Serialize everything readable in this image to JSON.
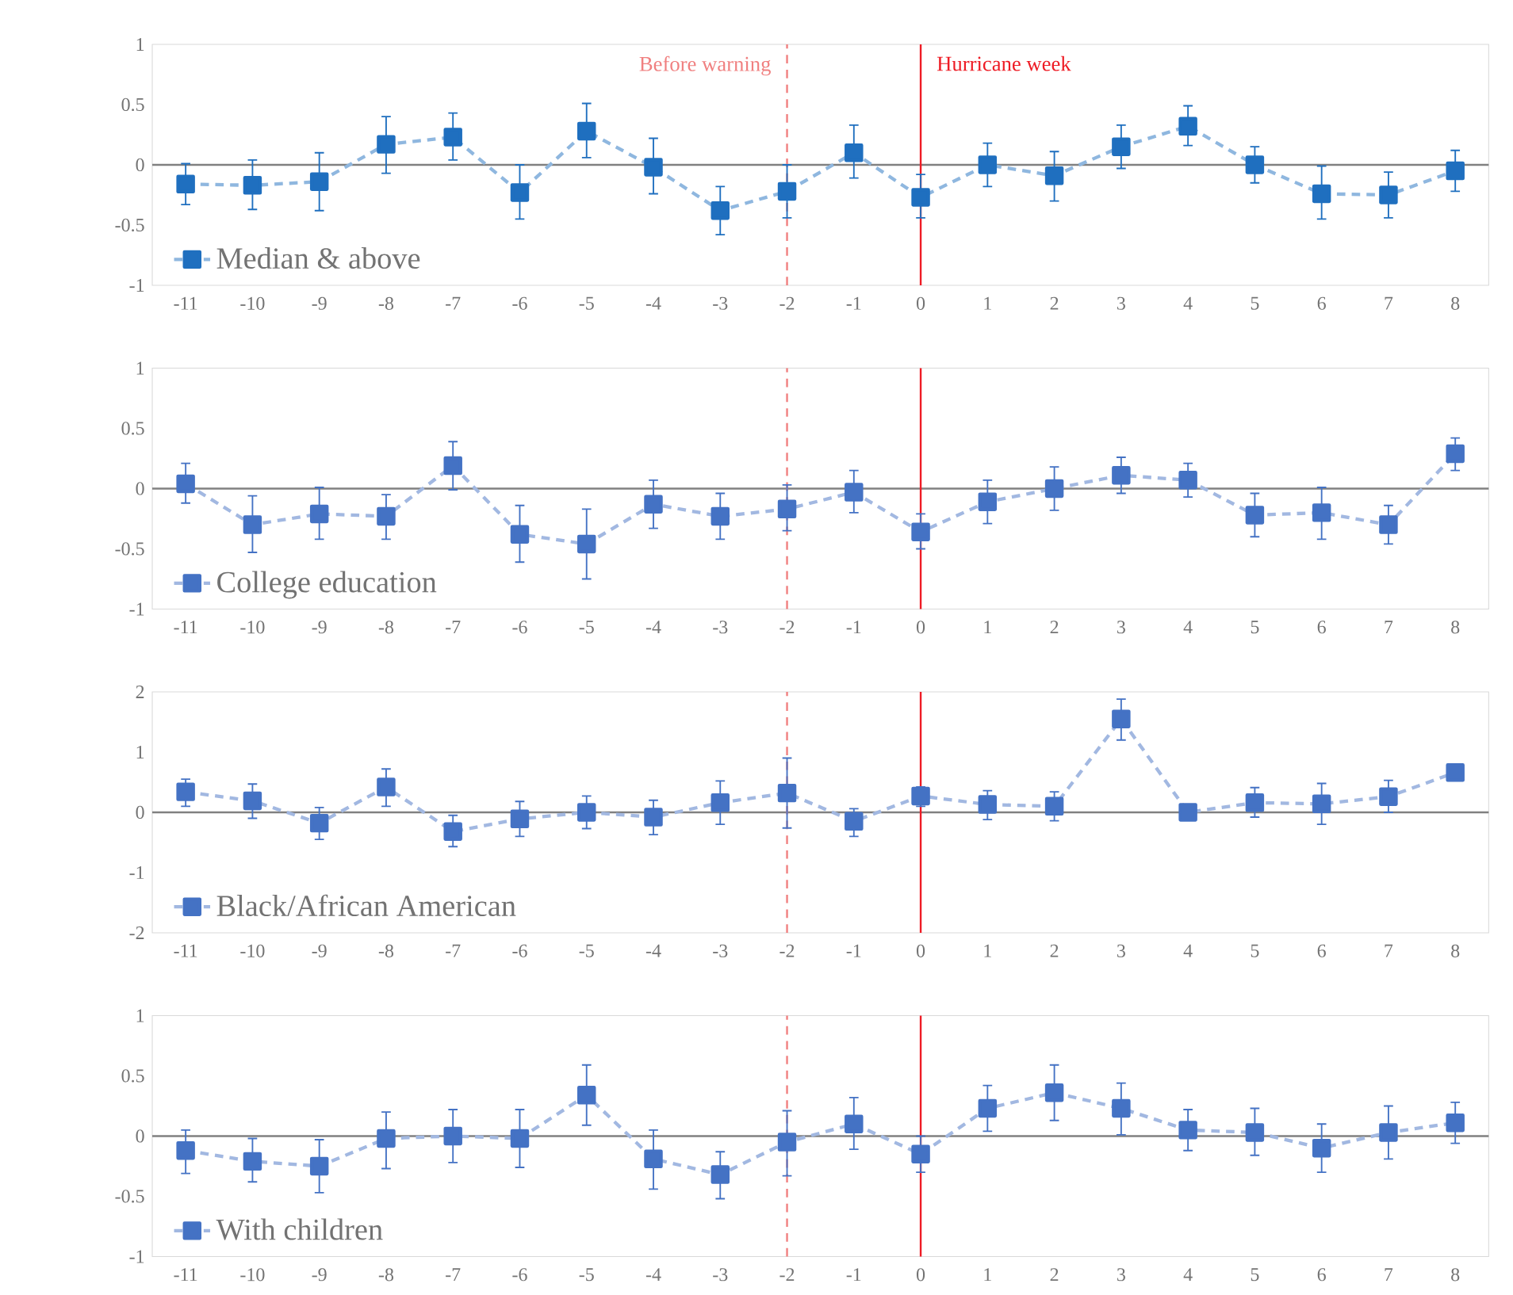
{
  "chart_data": [
    {
      "type": "line",
      "x": [
        -11,
        -10,
        -9,
        -8,
        -7,
        -6,
        -5,
        -4,
        -3,
        -2,
        -1,
        0,
        1,
        2,
        3,
        4,
        5,
        6,
        7,
        8
      ],
      "xlim": [
        -11.5,
        8.5
      ],
      "xticks": [
        -11,
        -10,
        -9,
        -8,
        -7,
        -6,
        -5,
        -4,
        -3,
        -2,
        -1,
        0,
        1,
        2,
        3,
        4,
        5,
        6,
        7,
        8
      ],
      "ylim": [
        -1,
        1
      ],
      "yticks": [
        -1,
        -0.5,
        0,
        0.5,
        1
      ],
      "marker": "square",
      "line_style": "dashed",
      "legend": "bottom left",
      "series": [
        {
          "name": "Median & above",
          "color": "#1f6fbf",
          "values": [
            -0.16,
            -0.17,
            -0.14,
            0.17,
            0.23,
            -0.23,
            0.28,
            -0.02,
            -0.38,
            -0.22,
            0.1,
            -0.27,
            0.0,
            -0.09,
            0.15,
            0.32,
            0.0,
            -0.24,
            -0.25,
            -0.05
          ],
          "errors": [
            [
              -0.33,
              0.01
            ],
            [
              -0.37,
              0.04
            ],
            [
              -0.38,
              0.1
            ],
            [
              -0.07,
              0.4
            ],
            [
              0.04,
              0.43
            ],
            [
              -0.45,
              0.0
            ],
            [
              0.06,
              0.51
            ],
            [
              -0.24,
              0.22
            ],
            [
              -0.58,
              -0.18
            ],
            [
              -0.44,
              0.0
            ],
            [
              -0.11,
              0.33
            ],
            [
              -0.44,
              -0.08
            ],
            [
              -0.18,
              0.18
            ],
            [
              -0.3,
              0.11
            ],
            [
              -0.03,
              0.33
            ],
            [
              0.16,
              0.49
            ],
            [
              -0.15,
              0.15
            ],
            [
              -0.45,
              -0.01
            ],
            [
              -0.44,
              -0.06
            ],
            [
              -0.22,
              0.12
            ]
          ]
        }
      ],
      "ref_lines": [
        {
          "axis": "y",
          "value": 0,
          "color": "#808080",
          "line_style": "solid"
        },
        {
          "axis": "x",
          "value": -2,
          "label": "Before warning",
          "color": "#f08080",
          "line_style": "dashed"
        },
        {
          "axis": "x",
          "value": 0,
          "label": "Hurricane week",
          "color": "#ee1c25",
          "line_style": "solid"
        }
      ]
    },
    {
      "type": "line",
      "x": [
        -11,
        -10,
        -9,
        -8,
        -7,
        -6,
        -5,
        -4,
        -3,
        -2,
        -1,
        0,
        1,
        2,
        3,
        4,
        5,
        6,
        7,
        8
      ],
      "xlim": [
        -11.5,
        8.5
      ],
      "xticks": [
        -11,
        -10,
        -9,
        -8,
        -7,
        -6,
        -5,
        -4,
        -3,
        -2,
        -1,
        0,
        1,
        2,
        3,
        4,
        5,
        6,
        7,
        8
      ],
      "ylim": [
        -1,
        1
      ],
      "yticks": [
        -1,
        -0.5,
        0,
        0.5,
        1
      ],
      "marker": "square",
      "line_style": "dashed",
      "legend": "bottom left",
      "series": [
        {
          "name": "College education",
          "color": "#4472c4",
          "values": [
            0.04,
            -0.3,
            -0.21,
            -0.23,
            0.19,
            -0.38,
            -0.46,
            -0.13,
            -0.23,
            -0.17,
            -0.03,
            -0.36,
            -0.11,
            0.0,
            0.11,
            0.07,
            -0.22,
            -0.2,
            -0.3,
            0.29
          ],
          "errors": [
            [
              -0.12,
              0.21
            ],
            [
              -0.53,
              -0.06
            ],
            [
              -0.42,
              0.01
            ],
            [
              -0.42,
              -0.05
            ],
            [
              -0.01,
              0.39
            ],
            [
              -0.61,
              -0.14
            ],
            [
              -0.75,
              -0.17
            ],
            [
              -0.33,
              0.07
            ],
            [
              -0.42,
              -0.04
            ],
            [
              -0.35,
              0.03
            ],
            [
              -0.2,
              0.15
            ],
            [
              -0.5,
              -0.21
            ],
            [
              -0.29,
              0.07
            ],
            [
              -0.18,
              0.18
            ],
            [
              -0.04,
              0.26
            ],
            [
              -0.07,
              0.21
            ],
            [
              -0.4,
              -0.04
            ],
            [
              -0.42,
              0.01
            ],
            [
              -0.46,
              -0.14
            ],
            [
              0.15,
              0.42
            ]
          ]
        }
      ],
      "ref_lines": [
        {
          "axis": "y",
          "value": 0,
          "color": "#808080",
          "line_style": "solid"
        },
        {
          "axis": "x",
          "value": -2,
          "color": "#f08080",
          "line_style": "dashed"
        },
        {
          "axis": "x",
          "value": 0,
          "color": "#ee1c25",
          "line_style": "solid"
        }
      ]
    },
    {
      "type": "line",
      "x": [
        -11,
        -10,
        -9,
        -8,
        -7,
        -6,
        -5,
        -4,
        -3,
        -2,
        -1,
        0,
        1,
        2,
        3,
        4,
        5,
        6,
        7,
        8
      ],
      "xlim": [
        -11.5,
        8.5
      ],
      "xticks": [
        -11,
        -10,
        -9,
        -8,
        -7,
        -6,
        -5,
        -4,
        -3,
        -2,
        -1,
        0,
        1,
        2,
        3,
        4,
        5,
        6,
        7,
        8
      ],
      "ylim": [
        -2,
        2
      ],
      "yticks": [
        -2,
        -1,
        0,
        1,
        2
      ],
      "marker": "square",
      "line_style": "dashed",
      "legend": "bottom left",
      "series": [
        {
          "name": "Black/African American",
          "color": "#4472c4",
          "values": [
            0.34,
            0.19,
            -0.18,
            0.42,
            -0.32,
            -0.11,
            0.0,
            -0.08,
            0.16,
            0.32,
            -0.15,
            0.27,
            0.13,
            0.1,
            1.55,
            0.0,
            0.16,
            0.14,
            0.26,
            0.66
          ],
          "errors": [
            [
              0.1,
              0.55
            ],
            [
              -0.1,
              0.47
            ],
            [
              -0.45,
              0.08
            ],
            [
              0.1,
              0.72
            ],
            [
              -0.57,
              -0.05
            ],
            [
              -0.4,
              0.18
            ],
            [
              -0.27,
              0.27
            ],
            [
              -0.37,
              0.2
            ],
            [
              -0.2,
              0.52
            ],
            [
              -0.26,
              0.9
            ],
            [
              -0.4,
              0.06
            ],
            [
              0.1,
              0.42
            ],
            [
              -0.12,
              0.36
            ],
            [
              -0.14,
              0.34
            ],
            [
              1.2,
              1.88
            ],
            null,
            [
              -0.08,
              0.41
            ],
            [
              -0.2,
              0.48
            ],
            [
              0.0,
              0.53
            ],
            null
          ]
        }
      ],
      "ref_lines": [
        {
          "axis": "y",
          "value": 0,
          "color": "#808080",
          "line_style": "solid"
        },
        {
          "axis": "x",
          "value": -2,
          "color": "#f08080",
          "line_style": "dashed"
        },
        {
          "axis": "x",
          "value": 0,
          "color": "#ee1c25",
          "line_style": "solid"
        }
      ]
    },
    {
      "type": "line",
      "x": [
        -11,
        -10,
        -9,
        -8,
        -7,
        -6,
        -5,
        -4,
        -3,
        -2,
        -1,
        0,
        1,
        2,
        3,
        4,
        5,
        6,
        7,
        8
      ],
      "xlim": [
        -11.5,
        8.5
      ],
      "xticks": [
        -11,
        -10,
        -9,
        -8,
        -7,
        -6,
        -5,
        -4,
        -3,
        -2,
        -1,
        0,
        1,
        2,
        3,
        4,
        5,
        6,
        7,
        8
      ],
      "ylim": [
        -1,
        1
      ],
      "yticks": [
        -1,
        -0.5,
        0,
        0.5,
        1
      ],
      "marker": "square",
      "line_style": "dashed",
      "legend": "bottom left",
      "series": [
        {
          "name": "With children",
          "color": "#4472c4",
          "values": [
            -0.12,
            -0.21,
            -0.25,
            -0.02,
            0.0,
            -0.02,
            0.34,
            -0.19,
            -0.32,
            -0.05,
            0.1,
            -0.15,
            0.23,
            0.36,
            0.23,
            0.05,
            0.03,
            -0.1,
            0.03,
            0.11
          ],
          "errors": [
            [
              -0.31,
              0.05
            ],
            [
              -0.38,
              -0.02
            ],
            [
              -0.47,
              -0.03
            ],
            [
              -0.27,
              0.2
            ],
            [
              -0.22,
              0.22
            ],
            [
              -0.26,
              0.22
            ],
            [
              0.09,
              0.59
            ],
            [
              -0.44,
              0.05
            ],
            [
              -0.52,
              -0.13
            ],
            [
              -0.33,
              0.21
            ],
            [
              -0.11,
              0.32
            ],
            [
              -0.3,
              0.0
            ],
            [
              0.04,
              0.42
            ],
            [
              0.13,
              0.59
            ],
            [
              0.01,
              0.44
            ],
            [
              -0.12,
              0.22
            ],
            [
              -0.16,
              0.23
            ],
            [
              -0.3,
              0.1
            ],
            [
              -0.19,
              0.25
            ],
            [
              -0.06,
              0.28
            ]
          ]
        }
      ],
      "ref_lines": [
        {
          "axis": "y",
          "value": 0,
          "color": "#808080",
          "line_style": "solid"
        },
        {
          "axis": "x",
          "value": -2,
          "color": "#f08080",
          "line_style": "dashed"
        },
        {
          "axis": "x",
          "value": 0,
          "color": "#ee1c25",
          "line_style": "solid"
        }
      ]
    }
  ]
}
